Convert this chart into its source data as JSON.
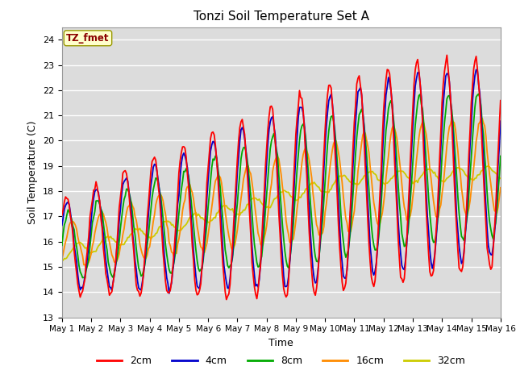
{
  "title": "Tonzi Soil Temperature Set A",
  "xlabel": "Time",
  "ylabel": "Soil Temperature (C)",
  "ylim": [
    13.0,
    24.5
  ],
  "yticks": [
    13.0,
    14.0,
    15.0,
    16.0,
    17.0,
    18.0,
    19.0,
    20.0,
    21.0,
    22.0,
    23.0,
    24.0
  ],
  "annotation_text": "TZ_fmet",
  "annotation_color": "#8B0000",
  "annotation_bg": "#FFFFCC",
  "bg_color": "#DCDCDC",
  "plot_bg": "#DCDCDC",
  "line_colors": {
    "2cm": "#FF0000",
    "4cm": "#0000CC",
    "8cm": "#00AA00",
    "16cm": "#FF8C00",
    "32cm": "#CCCC00"
  },
  "line_width": 1.3,
  "xtick_labels": [
    "May 1",
    "May 2",
    "May 3",
    "May 4",
    "May 5",
    "May 6",
    "May 7",
    "May 8",
    "May 9",
    "May 10",
    "May 11",
    "May 12",
    "May 13",
    "May 14",
    "May 15",
    "May 16"
  ],
  "days": 15,
  "figsize": [
    6.4,
    4.8
  ],
  "dpi": 100
}
